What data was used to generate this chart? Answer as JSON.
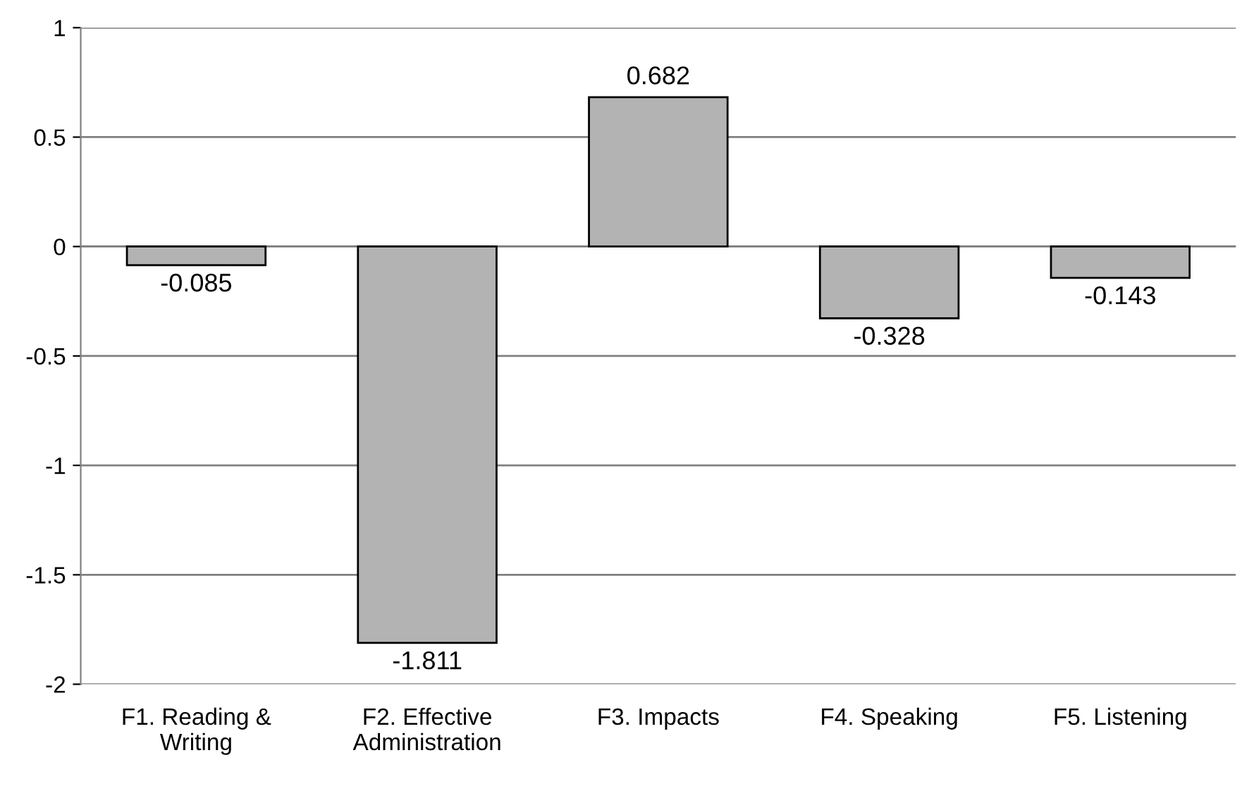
{
  "chart_data": {
    "type": "bar",
    "categories": [
      "F1. Reading &\nWriting",
      "F2. Effective\nAdministration",
      "F3. Impacts",
      "F4. Speaking",
      "F5. Listening"
    ],
    "values": [
      -0.085,
      -1.811,
      0.682,
      -0.328,
      -0.143
    ],
    "color": "#b3b3b3",
    "ylim": [
      -2,
      1
    ],
    "yticks": [
      -2,
      -1.5,
      -1,
      -0.5,
      0,
      0.5,
      1
    ],
    "grid": "y",
    "data_labels": true
  }
}
